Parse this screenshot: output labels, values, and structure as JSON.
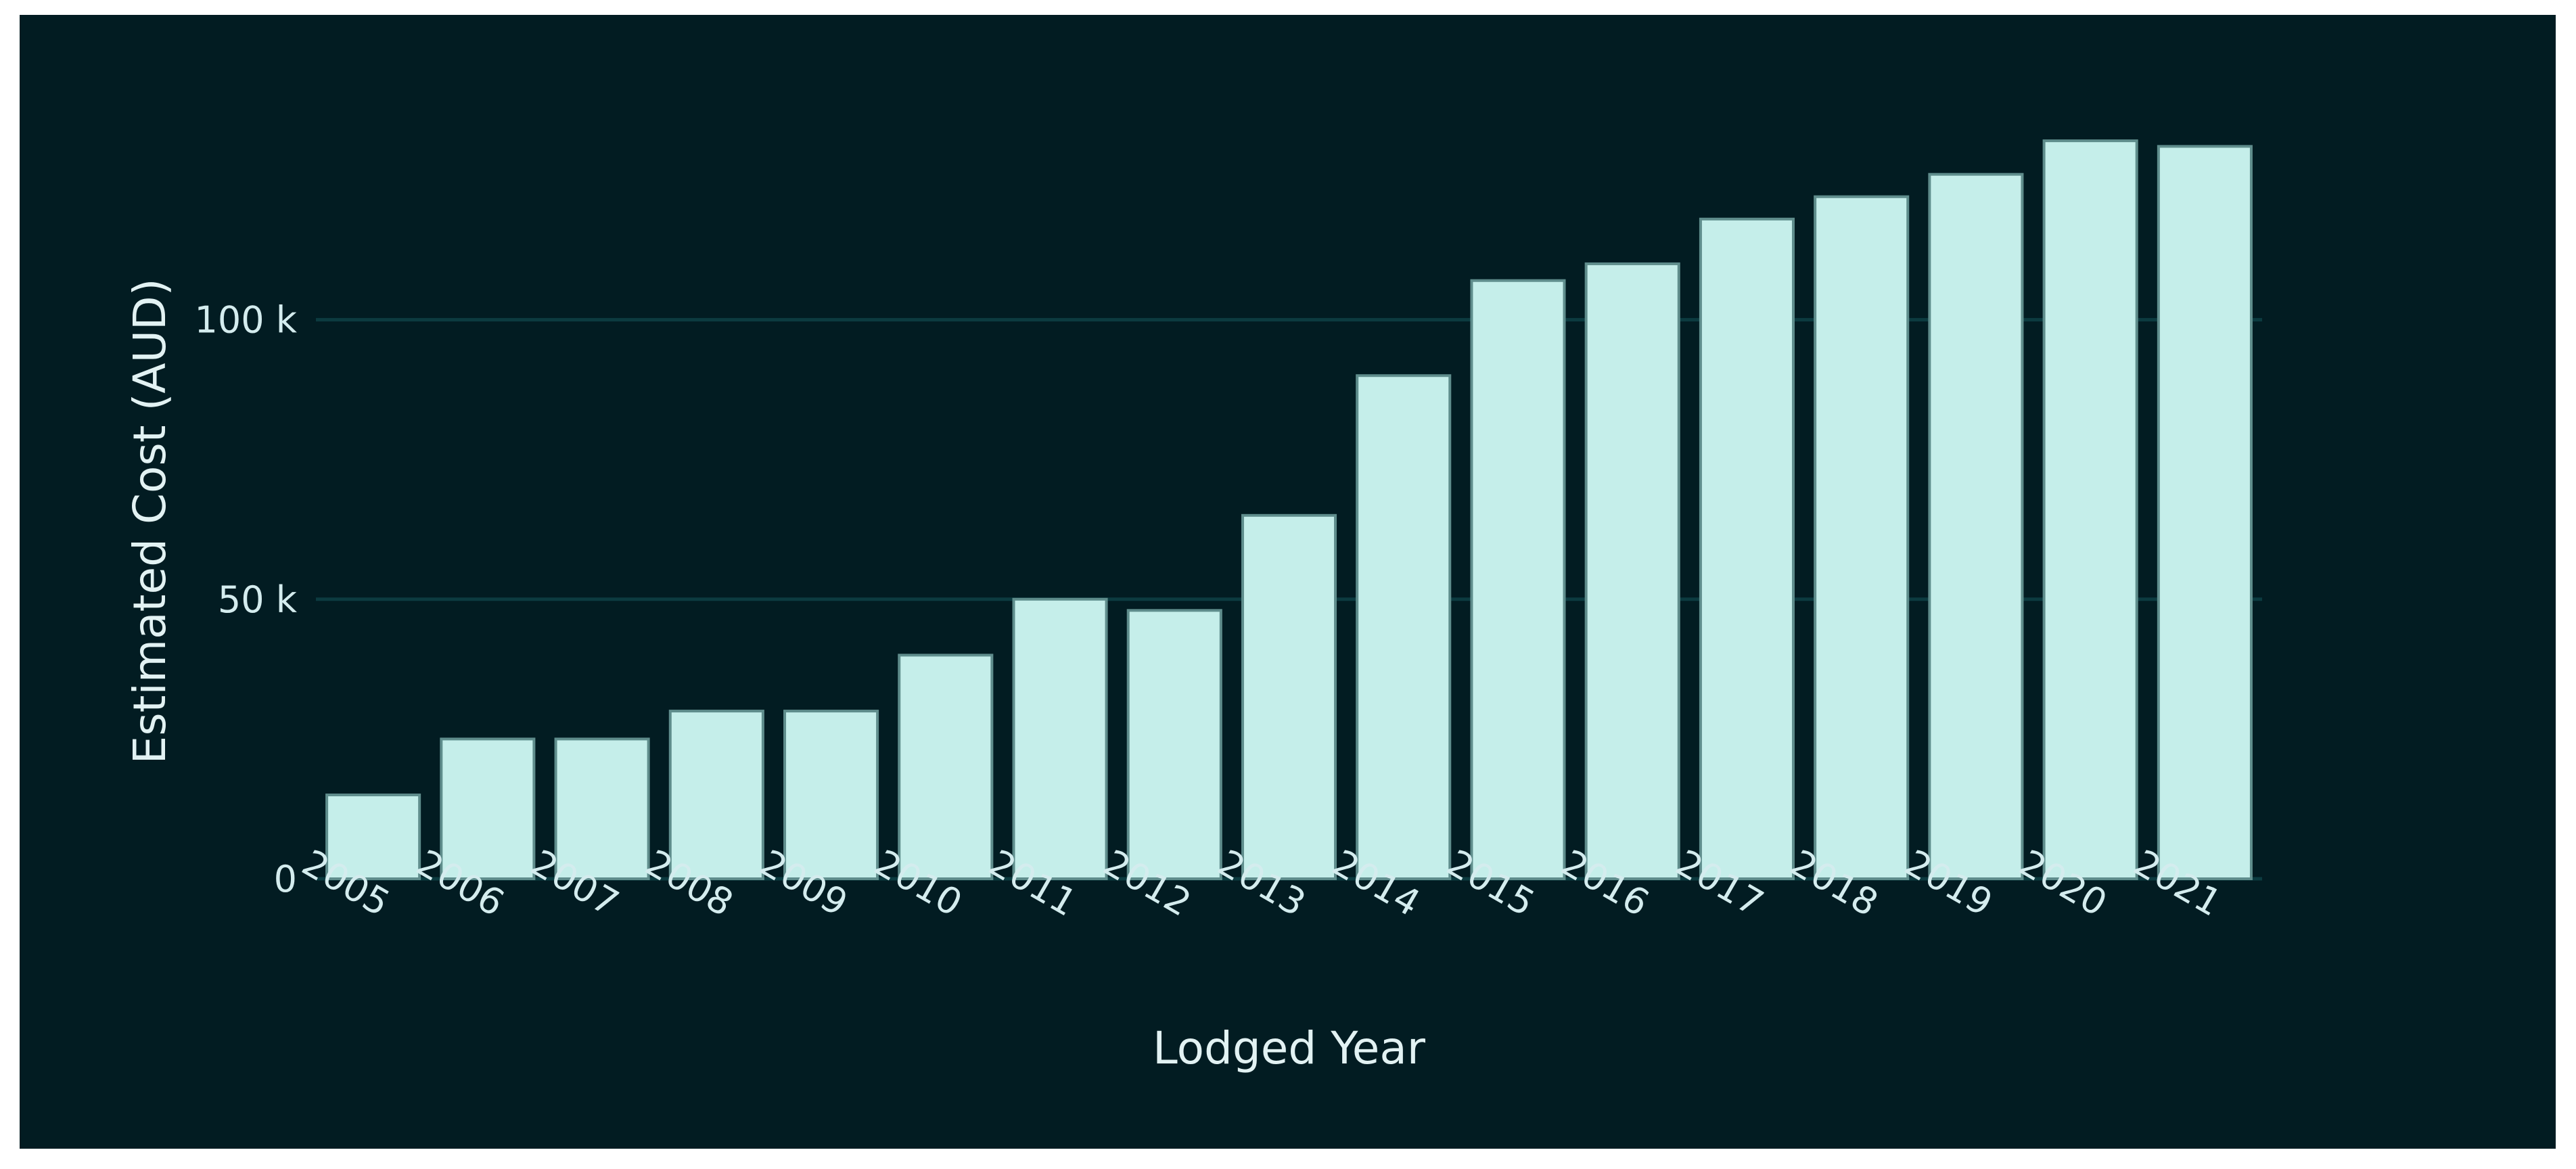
{
  "chart_data": {
    "type": "bar",
    "title": "",
    "xlabel": "Lodged Year",
    "ylabel": "Estimated Cost (AUD)",
    "categories": [
      "2005",
      "2006",
      "2007",
      "2008",
      "2009",
      "2010",
      "2011",
      "2012",
      "2013",
      "2014",
      "2015",
      "2016",
      "2017",
      "2018",
      "2019",
      "2020",
      "2021"
    ],
    "values": [
      15000,
      25000,
      25000,
      30000,
      30000,
      40000,
      50000,
      48000,
      65000,
      90000,
      107000,
      110000,
      118000,
      122000,
      126000,
      132000,
      131000
    ],
    "ylim": [
      0,
      140000
    ],
    "yticks": [
      0,
      50000,
      100000
    ],
    "ytick_labels": [
      "0",
      "50 k",
      "100 k"
    ],
    "grid": true,
    "legend": "none",
    "colors": {
      "background": "#021c22",
      "bar_fill": "#c5eeea",
      "bar_stroke": "#5f8d8c",
      "grid": "#0c3b40",
      "text": "#d4ecee"
    }
  }
}
